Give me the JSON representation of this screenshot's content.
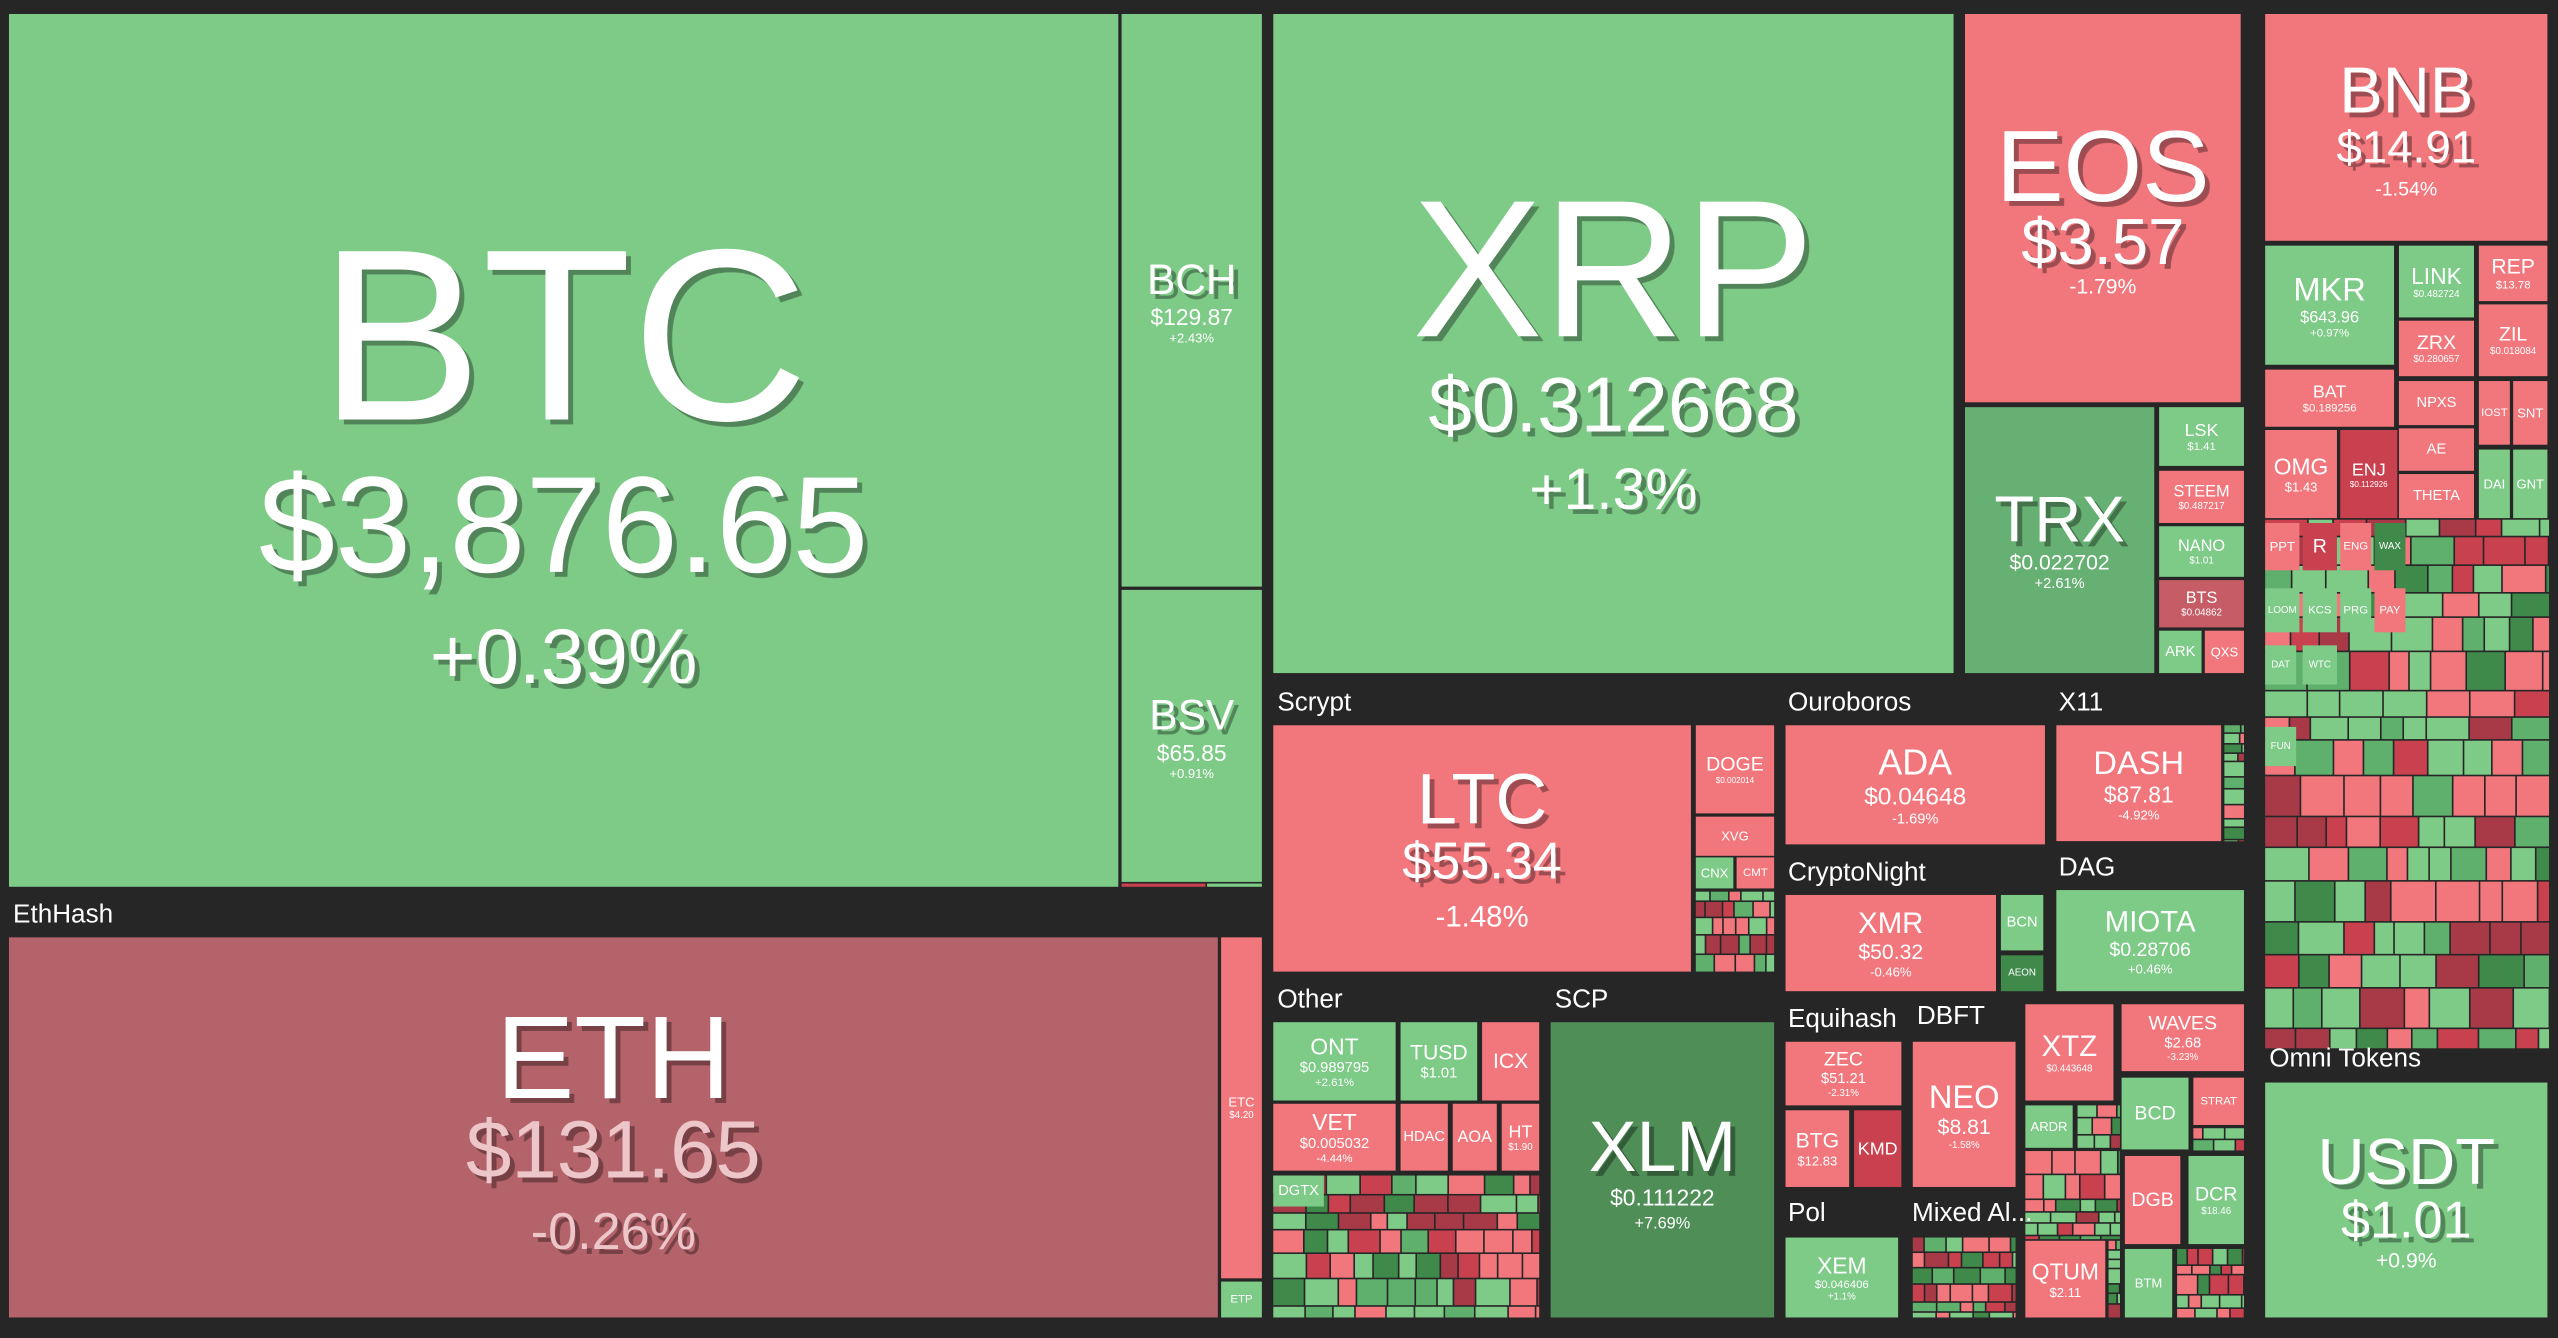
{
  "group_labels": [
    "EthHash",
    "Scrypt",
    "Ouroboros",
    "X11",
    "CryptoNight",
    "DAG",
    "Other",
    "SCP",
    "Equihash",
    "DBFT",
    "Pol",
    "Mixed Al...",
    "Omni Tokens"
  ],
  "tiles": [
    {
      "symbol": "BTC",
      "price": "$3,876.65",
      "change": "+0.39%"
    },
    {
      "symbol": "BCH",
      "price": "$129.87",
      "change": "+2.43%"
    },
    {
      "symbol": "BSV",
      "price": "$65.85",
      "change": "+0.91%"
    },
    {
      "symbol": "ETH",
      "price": "$131.65",
      "change": "-0.26%"
    },
    {
      "symbol": "ETC",
      "price": "$4.20"
    },
    {
      "symbol": "ETP"
    },
    {
      "symbol": "XRP",
      "price": "$0.312668",
      "change": "+1.3%"
    },
    {
      "symbol": "EOS",
      "price": "$3.57",
      "change": "-1.79%"
    },
    {
      "symbol": "TRX",
      "price": "$0.022702",
      "change": "+2.61%"
    },
    {
      "symbol": "LSK",
      "price": "$1.41"
    },
    {
      "symbol": "STEEM",
      "price": "$0.487217"
    },
    {
      "symbol": "NANO",
      "price": "$1.01"
    },
    {
      "symbol": "BTS",
      "price": "$0.04862"
    },
    {
      "symbol": "ARK"
    },
    {
      "symbol": "QXS"
    },
    {
      "symbol": "BNB",
      "price": "$14.91",
      "change": "-1.54%"
    },
    {
      "symbol": "MKR",
      "price": "$643.96",
      "change": "+0.97%"
    },
    {
      "symbol": "LINK",
      "price": "$0.482724"
    },
    {
      "symbol": "REP",
      "price": "$13.78"
    },
    {
      "symbol": "ZRX",
      "price": "$0.280657"
    },
    {
      "symbol": "ZIL",
      "price": "$0.018084"
    },
    {
      "symbol": "BAT",
      "price": "$0.189256"
    },
    {
      "symbol": "NPXS"
    },
    {
      "symbol": "AE"
    },
    {
      "symbol": "THETA"
    },
    {
      "symbol": "IOST"
    },
    {
      "symbol": "SNT"
    },
    {
      "symbol": "DAI"
    },
    {
      "symbol": "GNT"
    },
    {
      "symbol": "OMG",
      "price": "$1.43"
    },
    {
      "symbol": "ENJ",
      "price": "$0.112926"
    },
    {
      "symbol": "PPT"
    },
    {
      "symbol": "R"
    },
    {
      "symbol": "ENG"
    },
    {
      "symbol": "WAX"
    },
    {
      "symbol": "LOOM"
    },
    {
      "symbol": "KCS"
    },
    {
      "symbol": "PRG"
    },
    {
      "symbol": "PAY"
    },
    {
      "symbol": "DAT"
    },
    {
      "symbol": "WTC"
    },
    {
      "symbol": "FUN"
    },
    {
      "symbol": "USDT",
      "price": "$1.01",
      "change": "+0.9%"
    },
    {
      "symbol": "LTC",
      "price": "$55.34",
      "change": "-1.48%"
    },
    {
      "symbol": "DOGE",
      "price": "$0.002014"
    },
    {
      "symbol": "XVG"
    },
    {
      "symbol": "CNX"
    },
    {
      "symbol": "CMT"
    },
    {
      "symbol": "ADA",
      "price": "$0.04648",
      "change": "-1.69%"
    },
    {
      "symbol": "DASH",
      "price": "$87.81",
      "change": "-4.92%"
    },
    {
      "symbol": "XMR",
      "price": "$50.32",
      "change": "-0.46%"
    },
    {
      "symbol": "BCN"
    },
    {
      "symbol": "AEON"
    },
    {
      "symbol": "MIOTA",
      "price": "$0.28706",
      "change": "+0.46%"
    },
    {
      "symbol": "ONT",
      "price": "$0.989795",
      "change": "+2.61%"
    },
    {
      "symbol": "TUSD",
      "price": "$1.01"
    },
    {
      "symbol": "ICX"
    },
    {
      "symbol": "VET",
      "price": "$0.005032",
      "change": "-4.44%"
    },
    {
      "symbol": "HDAC"
    },
    {
      "symbol": "AOA"
    },
    {
      "symbol": "HT",
      "price": "$1.90"
    },
    {
      "symbol": "DGTX"
    },
    {
      "symbol": "XLM",
      "price": "$0.111222",
      "change": "+7.69%"
    },
    {
      "symbol": "ZEC",
      "price": "$51.21",
      "change": "-2.31%"
    },
    {
      "symbol": "BTG",
      "price": "$12.83"
    },
    {
      "symbol": "KMD"
    },
    {
      "symbol": "NEO",
      "price": "$8.81",
      "change": "-1.58%"
    },
    {
      "symbol": "XTZ",
      "price": "$0.443648"
    },
    {
      "symbol": "WAVES",
      "price": "$2.68",
      "change": "-3.23%"
    },
    {
      "symbol": "ARDR"
    },
    {
      "symbol": "BCD"
    },
    {
      "symbol": "STRAT"
    },
    {
      "symbol": "XEM",
      "price": "$0.046406",
      "change": "+1.1%"
    },
    {
      "symbol": "QTUM",
      "price": "$2.11"
    },
    {
      "symbol": "DGB"
    },
    {
      "symbol": "DCR",
      "price": "$18.46"
    },
    {
      "symbol": "BTM"
    }
  ]
}
